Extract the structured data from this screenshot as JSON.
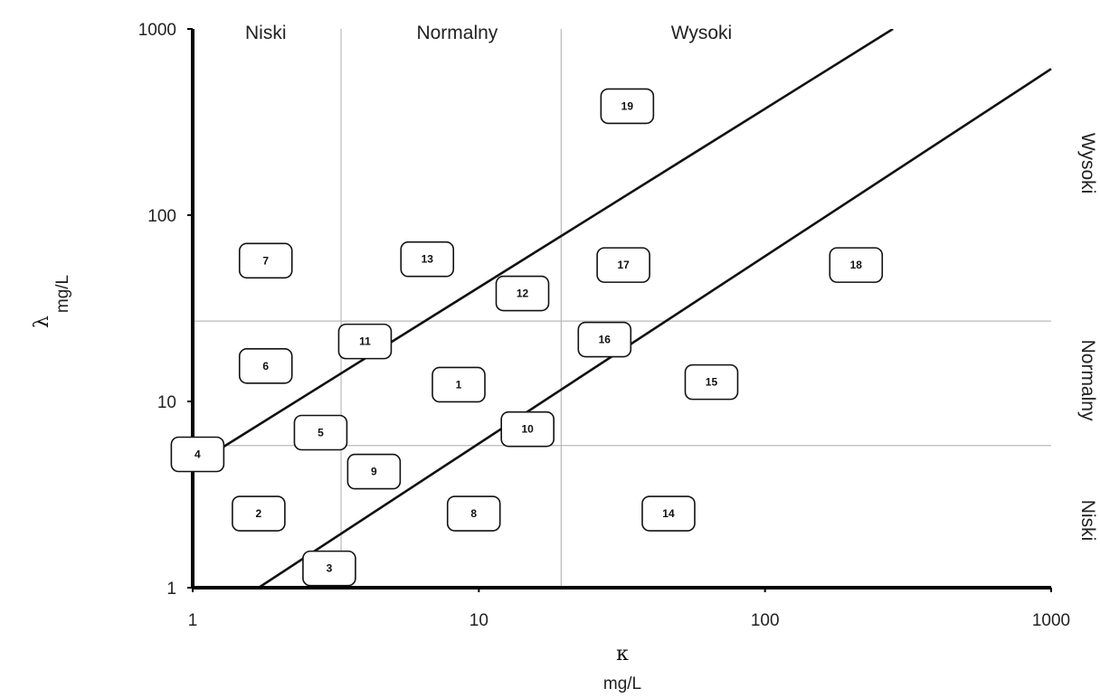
{
  "chart_data": {
    "type": "scatter",
    "x_scale": "log",
    "y_scale": "log",
    "xlim": [
      1,
      1000
    ],
    "ylim": [
      1,
      1000
    ],
    "xlabel": "κ",
    "xunit": "mg/L",
    "ylabel": "λ",
    "yunit": "mg/L",
    "x_ticks": [
      1,
      10,
      100,
      1000
    ],
    "x_tick_labels": [
      "1",
      "10",
      "100",
      "1000"
    ],
    "y_ticks": [
      1,
      10,
      100,
      1000
    ],
    "y_tick_labels": [
      "1",
      "10",
      "100",
      "1000"
    ],
    "x_bounds": [
      3.3,
      19.4
    ],
    "y_bounds": [
      5.8,
      27
    ],
    "x_regions": [
      {
        "label": "Niski",
        "x": 1.8
      },
      {
        "label": "Normalny",
        "x": 8.4
      },
      {
        "label": "Wysoki",
        "x": 60
      }
    ],
    "y_regions": [
      {
        "label": "Wysoki",
        "y": 190
      },
      {
        "label": "Normalny",
        "y": 13
      },
      {
        "label": "Niski",
        "y": 2.3
      }
    ],
    "lines": [
      {
        "x1": 1,
        "y1": 4.5,
        "x2": 280,
        "y2": 1000
      },
      {
        "x1": 1.7,
        "y1": 1,
        "x2": 1000,
        "y2": 610
      }
    ],
    "points": [
      {
        "label": "1",
        "x": 8.5,
        "y": 12.3
      },
      {
        "label": "2",
        "x": 1.7,
        "y": 2.5
      },
      {
        "label": "3",
        "x": 3.0,
        "y": 1.27
      },
      {
        "label": "4",
        "x": 1.04,
        "y": 5.2
      },
      {
        "label": "5",
        "x": 2.8,
        "y": 6.8
      },
      {
        "label": "6",
        "x": 1.8,
        "y": 15.5
      },
      {
        "label": "7",
        "x": 1.8,
        "y": 57
      },
      {
        "label": "8",
        "x": 9.6,
        "y": 2.5
      },
      {
        "label": "9",
        "x": 4.3,
        "y": 4.2
      },
      {
        "label": "10",
        "x": 14.8,
        "y": 7.1
      },
      {
        "label": "11",
        "x": 4.0,
        "y": 21
      },
      {
        "label": "12",
        "x": 14.2,
        "y": 38
      },
      {
        "label": "13",
        "x": 6.6,
        "y": 58
      },
      {
        "label": "14",
        "x": 46,
        "y": 2.5
      },
      {
        "label": "15",
        "x": 65,
        "y": 12.7
      },
      {
        "label": "16",
        "x": 27.5,
        "y": 21.5
      },
      {
        "label": "17",
        "x": 32,
        "y": 54
      },
      {
        "label": "18",
        "x": 208,
        "y": 54
      },
      {
        "label": "19",
        "x": 33,
        "y": 385
      }
    ]
  }
}
